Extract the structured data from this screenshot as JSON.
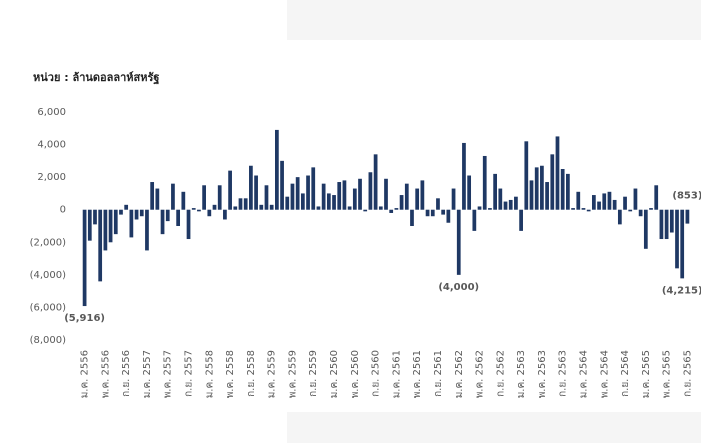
{
  "chart_data": {
    "type": "bar",
    "subtitle": "หน่วย : ล้านดอลลาห์สหรัฐ",
    "color": "#1f3864",
    "label_color": "#ff0000",
    "categories": [
      "ม.ค. 2556",
      null,
      null,
      null,
      "พ.ค. 2556",
      null,
      null,
      null,
      "ก.ย. 2556",
      null,
      null,
      null,
      "ม.ค. 2557",
      null,
      null,
      null,
      "พ.ค. 2557",
      null,
      null,
      null,
      "ก.ย. 2557",
      null,
      null,
      null,
      "ม.ค. 2558",
      null,
      null,
      null,
      "พ.ค. 2558",
      null,
      null,
      null,
      "ก.ย. 2558",
      null,
      null,
      null,
      "ม.ค. 2559",
      null,
      null,
      null,
      "พ.ค. 2559",
      null,
      null,
      null,
      "ก.ย. 2559",
      null,
      null,
      null,
      "ม.ค. 2560",
      null,
      null,
      null,
      "พ.ค. 2560",
      null,
      null,
      null,
      "ก.ย. 2560",
      null,
      null,
      null,
      "ม.ค. 2561",
      null,
      null,
      null,
      "พ.ค. 2561",
      null,
      null,
      null,
      "ก.ย. 2561",
      null,
      null,
      null,
      "ม.ค. 2562",
      null,
      null,
      null,
      "พ.ค. 2562",
      null,
      null,
      null,
      "ก.ย. 2562",
      null,
      null,
      null,
      "ม.ค. 2563",
      null,
      null,
      null,
      "พ.ค. 2563",
      null,
      null,
      null,
      "ก.ย. 2563",
      null,
      null,
      null,
      "ม.ค. 2564",
      null,
      null,
      null,
      "พ.ค. 2564",
      null,
      null,
      null,
      "ก.ย. 2564",
      null,
      null,
      null,
      "ม.ค. 2565",
      null,
      null,
      null,
      "พ.ค. 2565",
      null,
      null,
      null,
      "ก.ย. 2565"
    ],
    "values": [
      -5916,
      -1900,
      -900,
      -4400,
      -2500,
      -2000,
      -1500,
      -300,
      300,
      -1700,
      -600,
      -400,
      -2500,
      1700,
      1300,
      -1500,
      -700,
      1600,
      -1000,
      1100,
      -1800,
      100,
      -100,
      1500,
      -400,
      300,
      1500,
      -600,
      2400,
      200,
      700,
      700,
      2700,
      2100,
      300,
      1500,
      300,
      4900,
      3000,
      800,
      1600,
      2000,
      1000,
      2100,
      2600,
      200,
      1600,
      1000,
      900,
      1700,
      1800,
      200,
      1300,
      1900,
      -100,
      2300,
      3400,
      200,
      1900,
      -200,
      100,
      900,
      1600,
      -1000,
      1300,
      1800,
      -400,
      -400,
      700,
      -300,
      -800,
      1300,
      -4000,
      4100,
      2100,
      -1300,
      200,
      3300,
      100,
      2200,
      1300,
      500,
      600,
      800,
      -1300,
      4200,
      1800,
      2600,
      2700,
      1700,
      3400,
      4500,
      2500,
      2200,
      100,
      1100,
      100,
      -100,
      900,
      500,
      1000,
      1100,
      600,
      -900,
      800,
      -100,
      1300,
      -400,
      -2400,
      100,
      1500,
      -1800,
      -1800,
      -1400,
      -3600,
      -4215,
      -853
    ],
    "value_labels": [
      "(5,916)",
      null,
      null,
      null,
      null,
      null,
      null,
      null,
      null,
      null,
      null,
      null,
      null,
      null,
      null,
      null,
      null,
      null,
      null,
      null,
      null,
      null,
      null,
      null,
      null,
      null,
      null,
      null,
      null,
      null,
      null,
      null,
      null,
      null,
      null,
      null,
      null,
      null,
      null,
      null,
      null,
      null,
      null,
      null,
      null,
      null,
      null,
      null,
      null,
      null,
      null,
      null,
      null,
      null,
      null,
      null,
      null,
      null,
      null,
      null,
      null,
      null,
      null,
      null,
      null,
      null,
      null,
      null,
      null,
      null,
      null,
      null,
      "(4,000)",
      null,
      null,
      null,
      null,
      null,
      null,
      null,
      null,
      null,
      null,
      null,
      null,
      null,
      null,
      null,
      null,
      null,
      null,
      null,
      null,
      null,
      null,
      null,
      null,
      null,
      null,
      null,
      null,
      null,
      null,
      null,
      null,
      null,
      null,
      null,
      null,
      null,
      null,
      null,
      null,
      null,
      null,
      "(4,215)",
      "(853)"
    ],
    "ylim": [
      -8000,
      6000
    ],
    "yticks": [
      {
        "value": -8000,
        "label": "(8,000)"
      },
      {
        "value": -6000,
        "label": "(6,000)"
      },
      {
        "value": -4000,
        "label": "(4,000)"
      },
      {
        "value": -2000,
        "label": "(2,000)"
      },
      0,
      {
        "value": 2000,
        "label": "2,000"
      },
      {
        "value": 4000,
        "label": "4,000"
      },
      {
        "value": 6000,
        "label": "6,000"
      }
    ]
  }
}
